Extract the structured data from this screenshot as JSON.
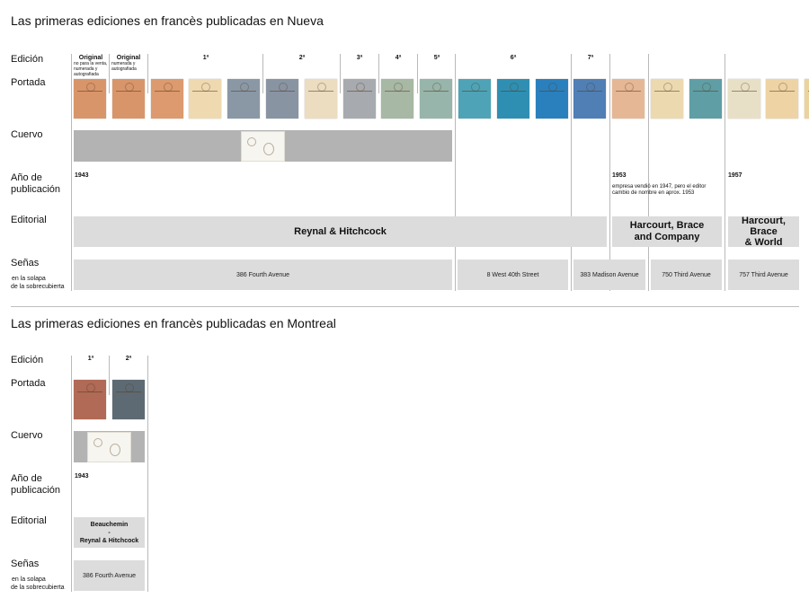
{
  "ny": {
    "title": "Las primeras ediciones en francès publicadas en Nueva",
    "labels": {
      "edicion": "Edición",
      "portada": "Portada",
      "cuervo": "Cuervo",
      "anio_1": "Año de",
      "anio_2": "publicación",
      "editorial": "Editorial",
      "senas": "Señas",
      "senas_sub_1": "en la solapa",
      "senas_sub_2": "de la sobrecubierta"
    },
    "editions": {
      "original_1": "Original",
      "original_1_sub": "no para la venta, numerada y autografiada",
      "original_2": "Original",
      "original_2_sub": "numerada y autografiada",
      "e1": "1ª",
      "e2": "2ª",
      "e3": "3ª",
      "e4": "4ª",
      "e5": "5ª",
      "e6": "6ª",
      "e7": "7ª"
    },
    "years": {
      "y1943": "1943",
      "y1953": "1953",
      "y1957": "1957",
      "note_1953_1": "empresa vendió en 1947, pero el editor",
      "note_1953_2": "cambio de nombre en aprox. 1953"
    },
    "publishers": {
      "p1": "Reynal & Hitchcock",
      "p2_1": "Harcourt, Brace",
      "p2_2": "and Company",
      "p3_1": "Harcourt,",
      "p3_2": "Brace",
      "p3_3": "& World"
    },
    "addresses": {
      "a1": "386 Fourth Avenue",
      "a2": "8 West 40th Street",
      "a3": "383 Madison Avenue",
      "a4": "750 Third Avenue",
      "a5": "757 Third Avenue"
    },
    "cover_colors": [
      "#d9956a",
      "#d9956a",
      "#dc9a6e",
      "#efd9b0",
      "#8a98a6",
      "#8994a3",
      "#ecdcc0",
      "#a7aaae",
      "#a7b8a4",
      "#97b5aa",
      "#4fa3b6",
      "#2f8fb2",
      "#2a80bd",
      "#4f7fb5",
      "#e6b795",
      "#ecd9b0",
      "#5f9ea5",
      "#e8e0c6",
      "#eed3a4",
      "#ead39c"
    ]
  },
  "mtl": {
    "title": "Las primeras ediciones en francès publicadas en Montreal",
    "labels": {
      "edicion": "Edición",
      "portada": "Portada",
      "cuervo": "Cuervo",
      "anio_1": "Año de",
      "anio_2": "publicación",
      "editorial": "Editorial",
      "senas": "Señas",
      "senas_sub_1": "en la solapa",
      "senas_sub_2": "de la sobrecubierta"
    },
    "editions": {
      "e1": "1ª",
      "e2": "2ª"
    },
    "year": "1943",
    "publisher_1": "Beauchemin",
    "publisher_2": "-",
    "publisher_3": "Reynal & Hitchcock",
    "address": "386 Fourth Avenue",
    "cover_colors": [
      "#b06a55",
      "#5e6a73"
    ]
  }
}
